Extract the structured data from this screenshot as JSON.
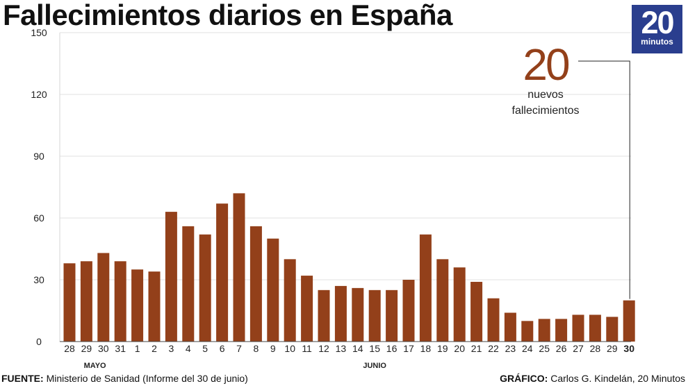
{
  "title": "Fallecimientos diarios en España",
  "logo": {
    "number": "20",
    "word": "minutos",
    "color": "#2a3e8e"
  },
  "chart_data": {
    "type": "bar",
    "title": "Fallecimientos diarios en España",
    "xlabel": "",
    "ylabel": "",
    "ylim": [
      0,
      150
    ],
    "yticks": [
      "0",
      "30",
      "60",
      "90",
      "120",
      "150"
    ],
    "grid": true,
    "bar_color": "#93401a",
    "categories": [
      "28",
      "29",
      "30",
      "31",
      "1",
      "2",
      "3",
      "4",
      "5",
      "6",
      "7",
      "8",
      "9",
      "10",
      "11",
      "12",
      "13",
      "14",
      "15",
      "16",
      "17",
      "18",
      "19",
      "20",
      "21",
      "22",
      "23",
      "24",
      "25",
      "26",
      "27",
      "28",
      "29",
      "30"
    ],
    "values": [
      38,
      39,
      43,
      39,
      35,
      34,
      63,
      56,
      52,
      67,
      72,
      56,
      50,
      40,
      32,
      25,
      27,
      26,
      25,
      25,
      30,
      52,
      40,
      36,
      29,
      21,
      14,
      10,
      11,
      11,
      13,
      13,
      12,
      20
    ],
    "month_labels": [
      {
        "label": "MAYO",
        "at_index": 1.5
      },
      {
        "label": "JUNIO",
        "at_index": 18
      }
    ],
    "annotation": {
      "value": "20",
      "line1": "nuevos",
      "line2": "fallecimientos",
      "color": "#93401a",
      "target_index": 33
    }
  },
  "footer": {
    "source_label": "FUENTE:",
    "source_text": "Ministerio de Sanidad (Informe del 30 de junio)",
    "credit_label": "GRÁFICO:",
    "credit_text": "Carlos G. Kindelán, 20 Minutos"
  }
}
